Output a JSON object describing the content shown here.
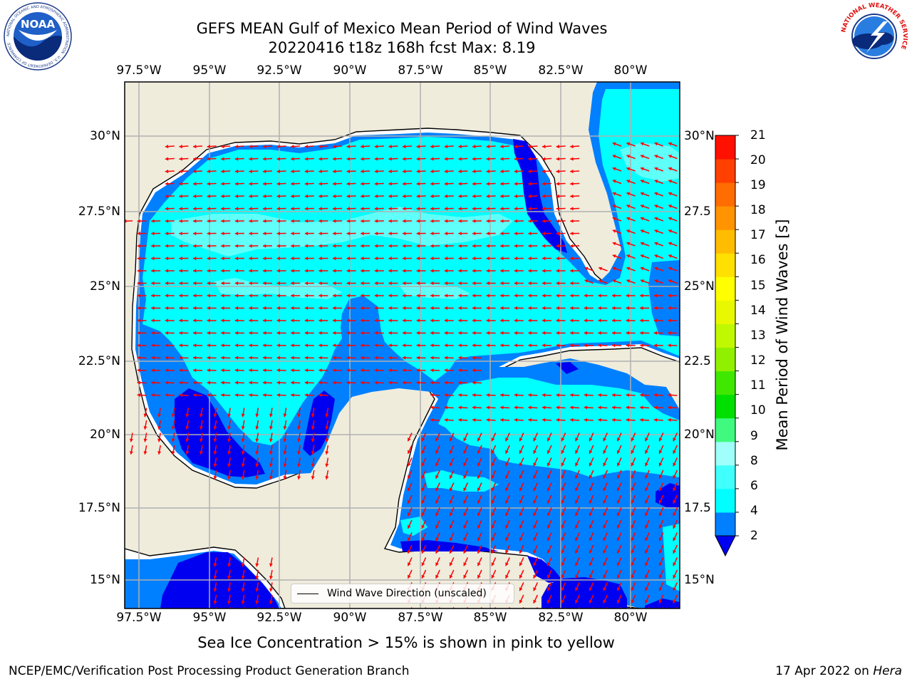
{
  "header": {
    "title_line1": "GEFS MEAN Gulf of Mexico Mean Period of Wind Waves",
    "title_line2": "20220416 t18z 168h fcst   Max: 8.19"
  },
  "map": {
    "lon_labels": [
      "97.5°W",
      "95°W",
      "92.5°W",
      "90°W",
      "87.5°W",
      "85°W",
      "82.5°W",
      "80°W"
    ],
    "lat_labels": [
      "30°N",
      "27.5°N",
      "25°N",
      "22.5°N",
      "20°N",
      "17.5°N",
      "15°N"
    ],
    "lat_labels_right": [
      "30°N",
      "27.5",
      "25°N",
      "22.5",
      "20°N",
      "17.5",
      "15°N"
    ],
    "legend_label": "Wind Wave Direction (unscaled)",
    "colors": {
      "land": "#efecdc",
      "coast_fill": "#ffffff",
      "blue_2": "#0000f0",
      "blue_4": "#0080ff",
      "cyan_6": "#00ffff",
      "cyan_8": "#5ffffa",
      "arrow": "#ff0000"
    }
  },
  "colorbar": {
    "title": "Mean Period of Wind Waves [s]",
    "ticks": [
      "21",
      "20",
      "19",
      "18",
      "17",
      "16",
      "15",
      "14",
      "13",
      "12",
      "11",
      "10",
      "9",
      "8",
      "6",
      "4",
      "2"
    ],
    "colors_bottom_to_top": [
      "#0080ff",
      "#00ffff",
      "#40fffc",
      "#a0fffa",
      "#40fa80",
      "#00e000",
      "#40e800",
      "#90f000",
      "#c0f800",
      "#e8f800",
      "#ffff00",
      "#ffe000",
      "#ffbc00",
      "#ff9400",
      "#ff6c00",
      "#ff4000",
      "#ff1000"
    ],
    "extend_color": "#0000f0"
  },
  "footer": {
    "ice_note": "Sea Ice Concentration > 15% is shown in pink to yellow",
    "branch": "NCEP/EMC/Verification Post Processing Product Generation Branch",
    "date": "17 Apr 2022 on ",
    "host": "Hera"
  },
  "logos": {
    "noaa_text": "NOAA",
    "noaa_ring_text": "NATIONAL OCEANIC AND ATMOSPHERIC ADMINISTRATION · U.S. DEPARTMENT OF COMMERCE",
    "nws_ring_text": "NATIONAL WEATHER SERVICE"
  }
}
